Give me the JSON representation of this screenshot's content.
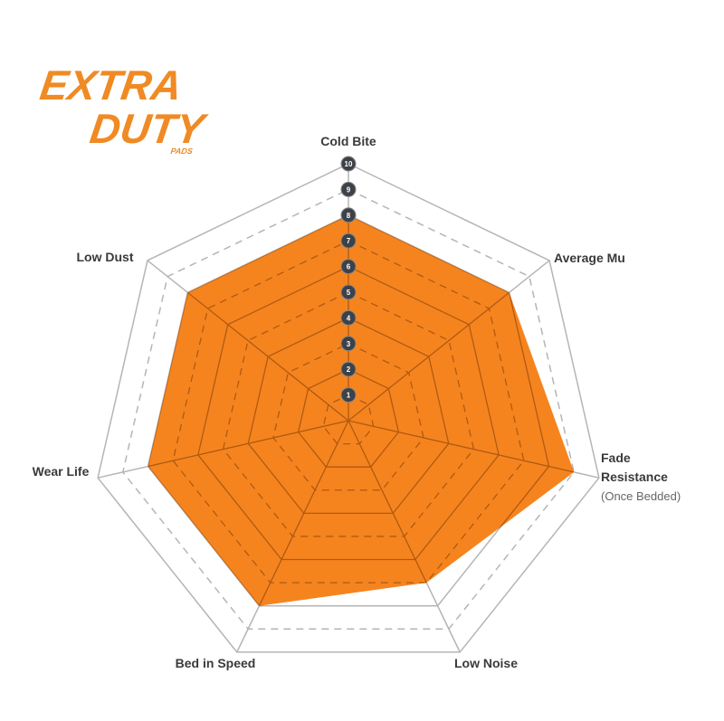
{
  "logo": {
    "line1": "EXTRA",
    "line2": "DUTY",
    "line3": "PADS"
  },
  "chart_data": {
    "type": "radar",
    "axes": [
      "Cold Bite",
      "Average Mu",
      "Fade Resistance (Once Bedded)",
      "Low Noise",
      "Bed in Speed",
      "Wear Life",
      "Low Dust"
    ],
    "axis_labels": {
      "cold_bite": "Cold Bite",
      "average_mu": "Average Mu",
      "fade_1": "Fade",
      "fade_2": "Resistance",
      "fade_3": "(Once Bedded)",
      "low_noise": "Low Noise",
      "bed_in_speed": "Bed in Speed",
      "wear_life": "Wear Life",
      "low_dust": "Low Dust"
    },
    "values": [
      8,
      8,
      9,
      7,
      8,
      8,
      8
    ],
    "scale_ticks": [
      "1",
      "2",
      "3",
      "4",
      "5",
      "6",
      "7",
      "8",
      "9",
      "10"
    ],
    "range": [
      0,
      10
    ],
    "fill_color": "#f5841f",
    "grid_color": "#b5b5b5",
    "badge_color": "#3d4148"
  }
}
